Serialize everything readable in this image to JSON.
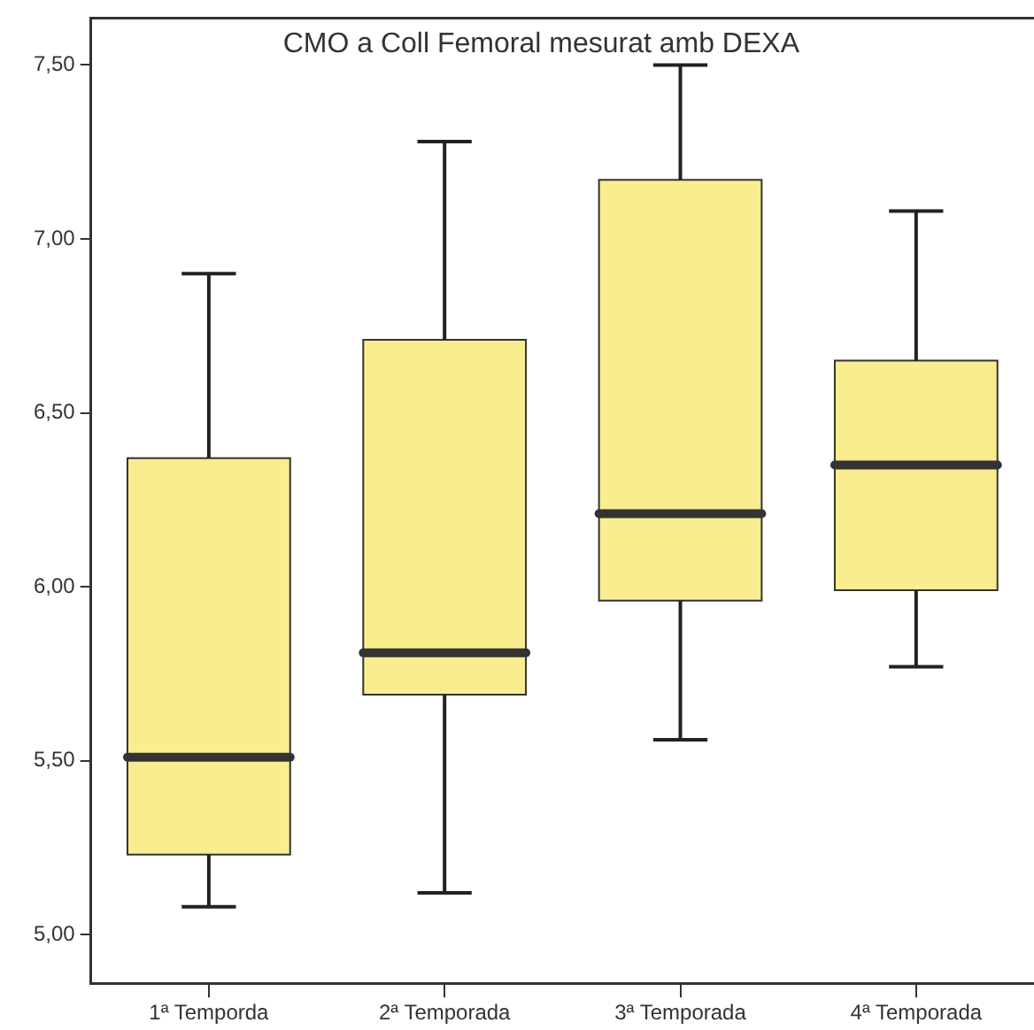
{
  "chart_data": {
    "type": "box",
    "title": "CMO a Coll Femoral mesurat amb DEXA",
    "categories": [
      "1ª Temporda",
      "2ª Temporada",
      "3ª Temporada",
      "4ª Temporada"
    ],
    "boxes": [
      {
        "low": 5.08,
        "q1": 5.23,
        "median": 5.51,
        "q3": 6.37,
        "high": 6.9
      },
      {
        "low": 5.12,
        "q1": 5.69,
        "median": 5.81,
        "q3": 6.71,
        "high": 7.28
      },
      {
        "low": 5.56,
        "q1": 5.96,
        "median": 6.21,
        "q3": 7.17,
        "high": 7.5
      },
      {
        "low": 5.77,
        "q1": 5.99,
        "median": 6.35,
        "q3": 6.65,
        "high": 7.08
      }
    ],
    "color": "#f9ed8f",
    "ylim": [
      4.86,
      7.635
    ],
    "yticks": [
      {
        "value": 5,
        "label": "5,00"
      },
      {
        "value": 5.5,
        "label": "5,50"
      },
      {
        "value": 6,
        "label": "6,00"
      },
      {
        "value": 6.5,
        "label": "6,50"
      },
      {
        "value": 7,
        "label": "7,00"
      },
      {
        "value": 7.5,
        "label": "7,50"
      }
    ],
    "grid": false,
    "legend": false
  }
}
